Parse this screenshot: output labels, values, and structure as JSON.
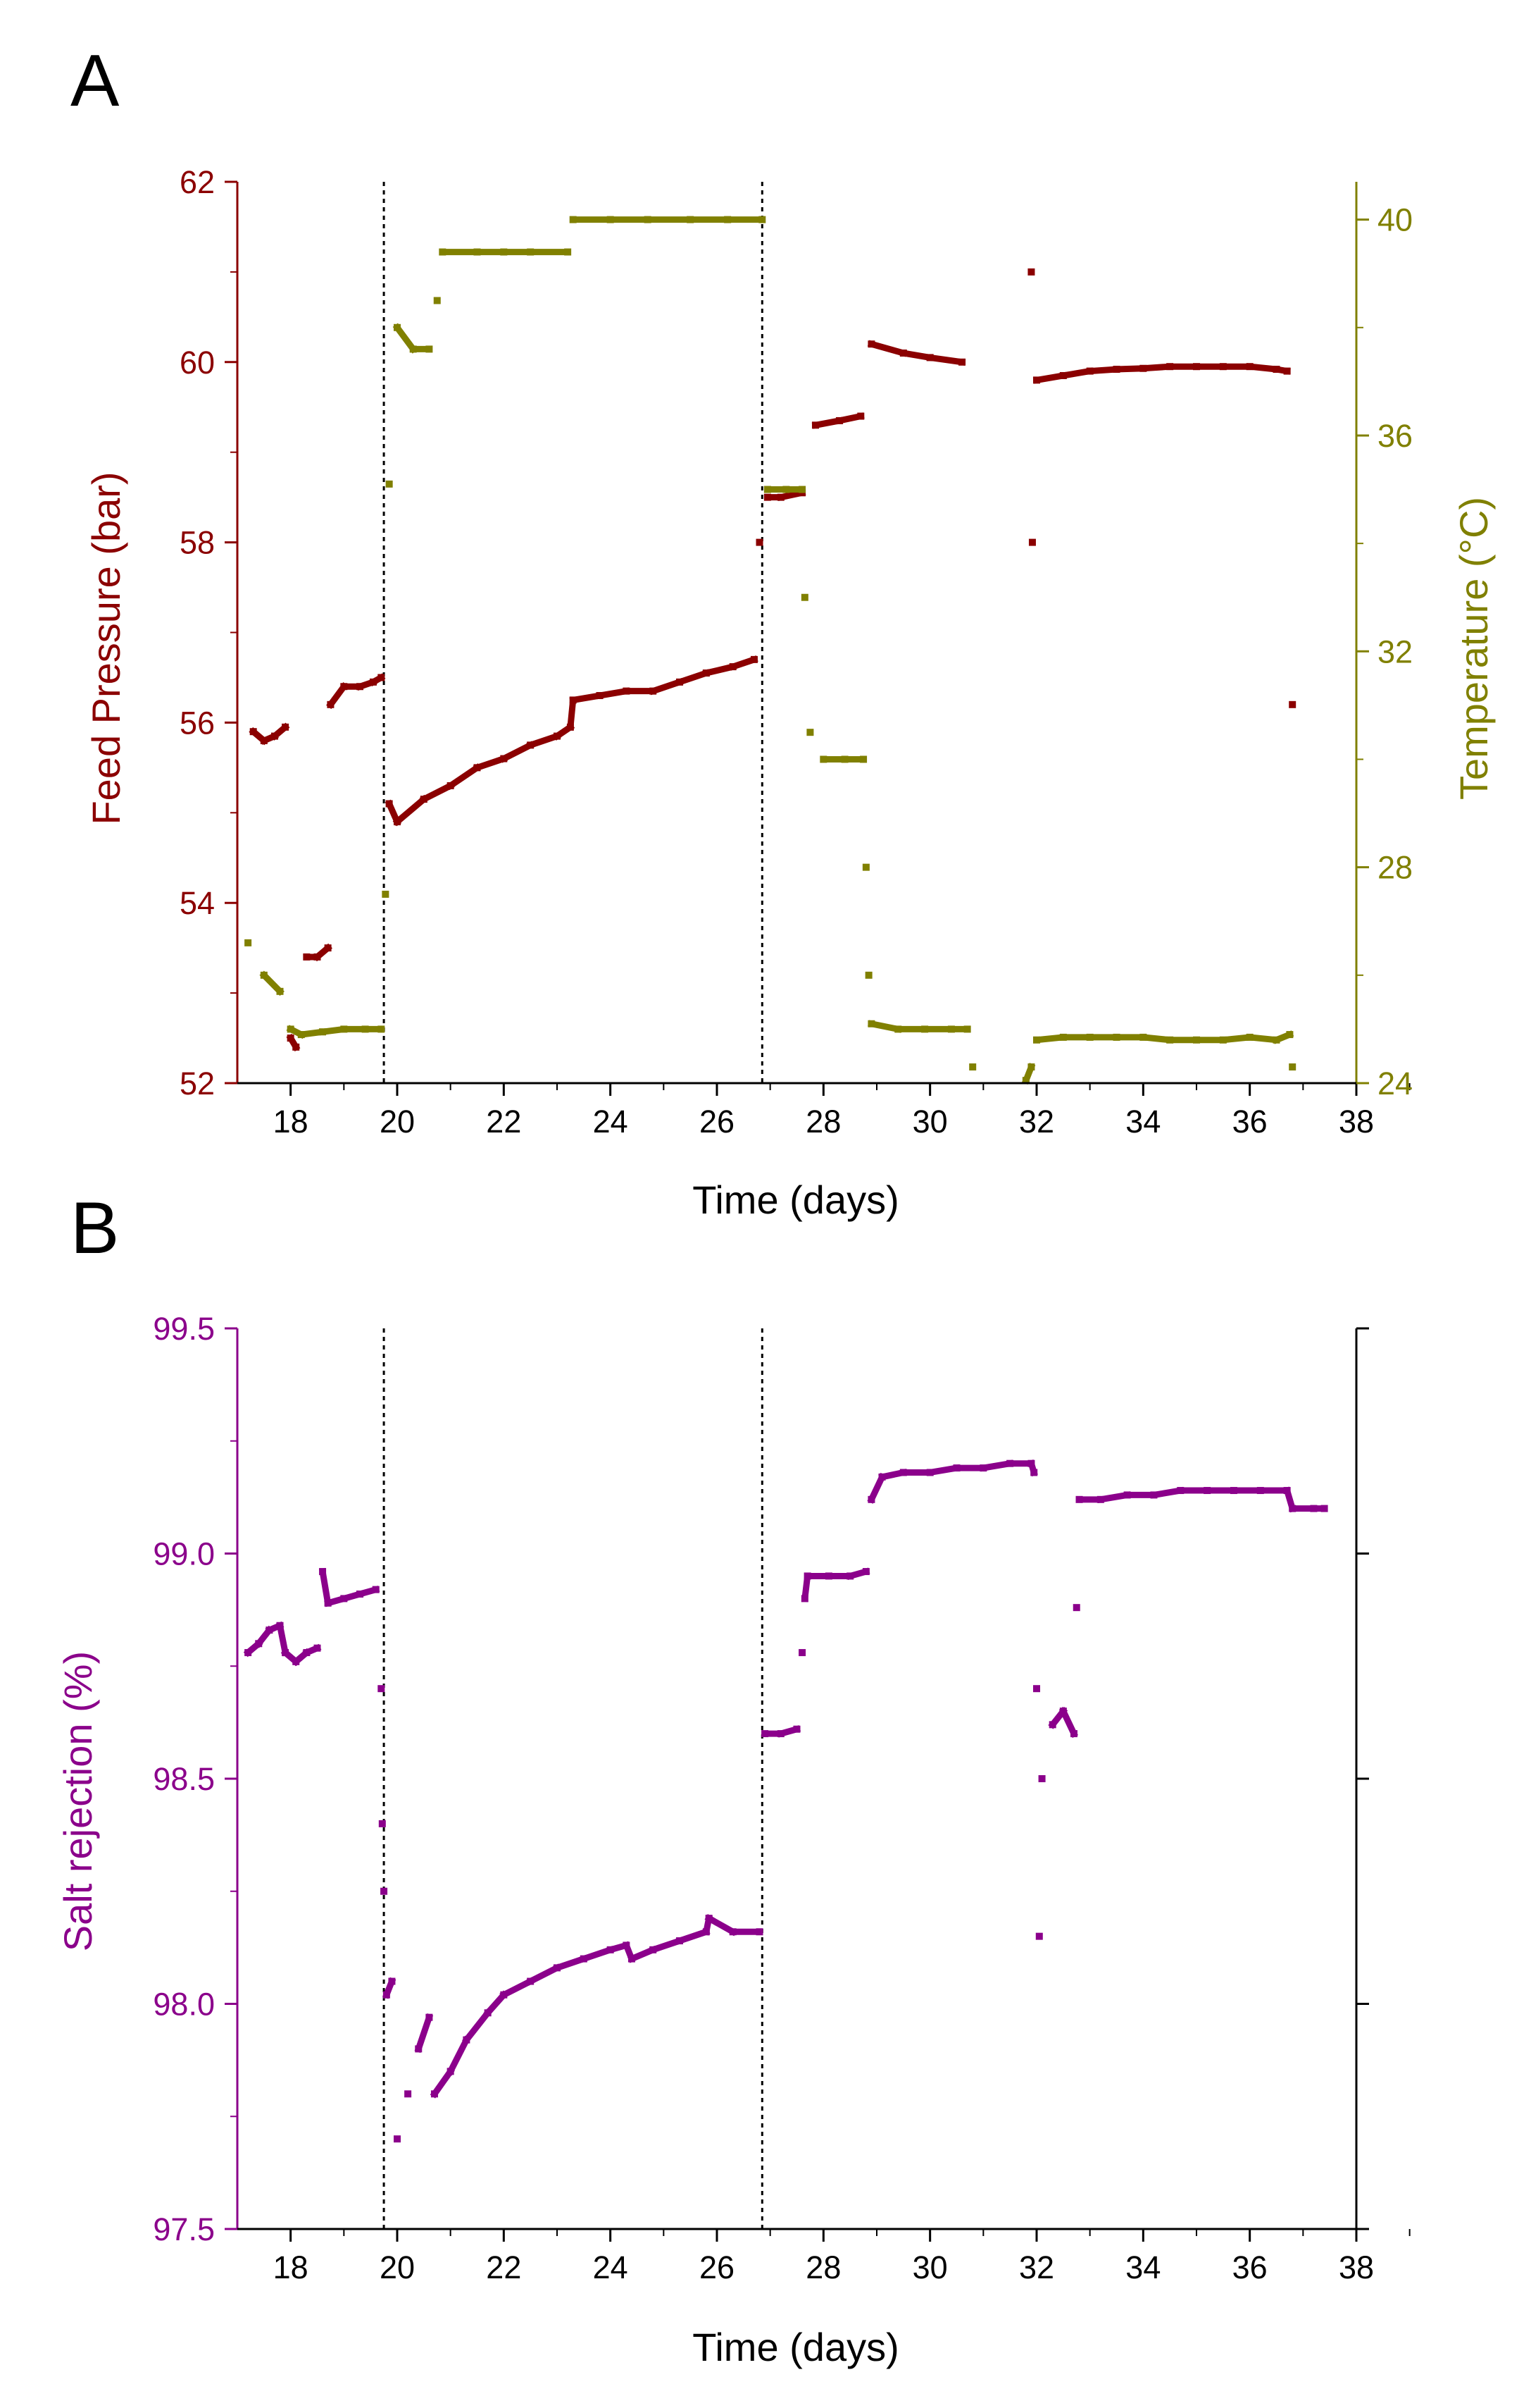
{
  "colors": {
    "pressure": "#8b0000",
    "temperature": "#808000",
    "rejection": "#8b008b",
    "axis": "#000000",
    "marker_line": "#000000"
  },
  "chart_data": [
    {
      "panel_label": "A",
      "type": "scatter",
      "xlabel": "Time (days)",
      "ylabel": "Feed Pressure (bar)",
      "y2label": "Temperature (°C)",
      "xlim": [
        17,
        38
      ],
      "ylim": [
        52,
        62
      ],
      "y2lim": [
        24,
        40.7
      ],
      "xticks": [
        18,
        20,
        22,
        24,
        26,
        28,
        30,
        32,
        34,
        36,
        38
      ],
      "yticks": [
        52,
        54,
        56,
        58,
        60,
        62
      ],
      "y2ticks": [
        24,
        28,
        32,
        36,
        40
      ],
      "vlines": [
        19.75,
        26.85
      ],
      "series": [
        {
          "axis": "left",
          "color": "#8b0000",
          "points": [
            [
              17.3,
              55.9
            ],
            [
              17.5,
              55.8
            ],
            [
              17.7,
              55.85
            ],
            [
              17.9,
              55.95
            ],
            [
              18.0,
              52.5
            ],
            [
              18.1,
              52.4
            ],
            [
              18.3,
              53.4
            ],
            [
              18.5,
              53.4
            ],
            [
              18.7,
              53.5
            ],
            [
              18.75,
              56.2
            ],
            [
              19.0,
              56.4
            ],
            [
              19.3,
              56.4
            ],
            [
              19.55,
              56.45
            ],
            [
              19.7,
              56.5
            ],
            [
              19.85,
              55.1
            ],
            [
              20.0,
              54.9
            ],
            [
              20.5,
              55.15
            ],
            [
              21.0,
              55.3
            ],
            [
              21.5,
              55.5
            ],
            [
              22.0,
              55.6
            ],
            [
              22.5,
              55.75
            ],
            [
              23.0,
              55.85
            ],
            [
              23.25,
              55.95
            ],
            [
              23.3,
              56.25
            ],
            [
              23.8,
              56.3
            ],
            [
              24.3,
              56.35
            ],
            [
              24.8,
              56.35
            ],
            [
              25.3,
              56.45
            ],
            [
              25.8,
              56.55
            ],
            [
              26.3,
              56.62
            ],
            [
              26.7,
              56.7
            ],
            [
              26.8,
              58.0
            ],
            [
              26.95,
              58.5
            ],
            [
              27.2,
              58.5
            ],
            [
              27.6,
              58.55
            ],
            [
              27.85,
              59.3
            ],
            [
              28.3,
              59.35
            ],
            [
              28.7,
              59.4
            ],
            [
              28.9,
              60.2
            ],
            [
              29.5,
              60.1
            ],
            [
              30.0,
              60.05
            ],
            [
              30.6,
              60.0
            ],
            [
              31.9,
              61.0
            ],
            [
              31.92,
              58.0
            ],
            [
              32.0,
              59.8
            ],
            [
              32.5,
              59.85
            ],
            [
              33.0,
              59.9
            ],
            [
              33.5,
              59.92
            ],
            [
              34.0,
              59.93
            ],
            [
              34.5,
              59.95
            ],
            [
              35.0,
              59.95
            ],
            [
              35.5,
              59.95
            ],
            [
              36.0,
              59.95
            ],
            [
              36.5,
              59.92
            ],
            [
              36.7,
              59.9
            ],
            [
              36.8,
              56.2
            ]
          ]
        },
        {
          "axis": "right",
          "color": "#808000",
          "points": [
            [
              17.2,
              26.6
            ],
            [
              17.5,
              26.0
            ],
            [
              17.8,
              25.7
            ],
            [
              18.0,
              25.0
            ],
            [
              18.2,
              24.9
            ],
            [
              18.6,
              24.95
            ],
            [
              19.0,
              25.0
            ],
            [
              19.4,
              25.0
            ],
            [
              19.7,
              25.0
            ],
            [
              19.78,
              27.5
            ],
            [
              19.85,
              35.1
            ],
            [
              20.0,
              38.0
            ],
            [
              20.3,
              37.6
            ],
            [
              20.6,
              37.6
            ],
            [
              20.75,
              38.5
            ],
            [
              20.85,
              39.4
            ],
            [
              21.5,
              39.4
            ],
            [
              22.0,
              39.4
            ],
            [
              22.5,
              39.4
            ],
            [
              23.2,
              39.4
            ],
            [
              23.3,
              40.0
            ],
            [
              24.0,
              40.0
            ],
            [
              24.7,
              40.0
            ],
            [
              25.5,
              40.0
            ],
            [
              26.2,
              40.0
            ],
            [
              26.85,
              40.0
            ],
            [
              26.95,
              35.0
            ],
            [
              27.3,
              35.0
            ],
            [
              27.6,
              35.0
            ],
            [
              27.65,
              33.0
            ],
            [
              27.75,
              30.5
            ],
            [
              28.0,
              30.0
            ],
            [
              28.4,
              30.0
            ],
            [
              28.75,
              30.0
            ],
            [
              28.8,
              28.0
            ],
            [
              28.85,
              26.0
            ],
            [
              28.9,
              25.1
            ],
            [
              29.4,
              25.0
            ],
            [
              29.9,
              25.0
            ],
            [
              30.4,
              25.0
            ],
            [
              30.7,
              25.0
            ],
            [
              30.8,
              24.3
            ],
            [
              31.8,
              24.05
            ],
            [
              31.9,
              24.3
            ],
            [
              32.0,
              24.8
            ],
            [
              32.5,
              24.85
            ],
            [
              33.0,
              24.85
            ],
            [
              33.5,
              24.85
            ],
            [
              34.0,
              24.85
            ],
            [
              34.5,
              24.8
            ],
            [
              35.0,
              24.8
            ],
            [
              35.5,
              24.8
            ],
            [
              36.0,
              24.85
            ],
            [
              36.5,
              24.8
            ],
            [
              36.75,
              24.9
            ],
            [
              36.8,
              24.3
            ]
          ]
        }
      ]
    },
    {
      "panel_label": "B",
      "type": "scatter",
      "xlabel": "Time (days)",
      "ylabel": "Salt rejection (%)",
      "xlim": [
        17,
        38
      ],
      "ylim": [
        97.5,
        99.5
      ],
      "xticks": [
        18,
        20,
        22,
        24,
        26,
        28,
        30,
        32,
        34,
        36,
        38
      ],
      "yticks": [
        97.5,
        98.0,
        98.5,
        99.0,
        99.5
      ],
      "vlines": [
        19.75,
        26.85
      ],
      "series": [
        {
          "axis": "left",
          "color": "#8b008b",
          "points": [
            [
              17.2,
              98.78
            ],
            [
              17.4,
              98.8
            ],
            [
              17.6,
              98.83
            ],
            [
              17.8,
              98.84
            ],
            [
              17.9,
              98.78
            ],
            [
              18.1,
              98.76
            ],
            [
              18.3,
              98.78
            ],
            [
              18.5,
              98.79
            ],
            [
              18.6,
              98.96
            ],
            [
              18.7,
              98.89
            ],
            [
              19.0,
              98.9
            ],
            [
              19.3,
              98.91
            ],
            [
              19.6,
              98.92
            ],
            [
              19.7,
              98.7
            ],
            [
              19.72,
              98.4
            ],
            [
              19.75,
              98.25
            ],
            [
              19.8,
              98.02
            ],
            [
              19.9,
              98.05
            ],
            [
              20.0,
              97.7
            ],
            [
              20.2,
              97.8
            ],
            [
              20.4,
              97.9
            ],
            [
              20.6,
              97.97
            ],
            [
              20.7,
              97.8
            ],
            [
              21.0,
              97.85
            ],
            [
              21.3,
              97.92
            ],
            [
              21.7,
              97.98
            ],
            [
              22.0,
              98.02
            ],
            [
              22.5,
              98.05
            ],
            [
              23.0,
              98.08
            ],
            [
              23.5,
              98.1
            ],
            [
              24.0,
              98.12
            ],
            [
              24.3,
              98.13
            ],
            [
              24.4,
              98.1
            ],
            [
              24.8,
              98.12
            ],
            [
              25.3,
              98.14
            ],
            [
              25.8,
              98.16
            ],
            [
              25.85,
              98.19
            ],
            [
              26.3,
              98.16
            ],
            [
              26.8,
              98.16
            ],
            [
              26.9,
              98.6
            ],
            [
              27.2,
              98.6
            ],
            [
              27.5,
              98.61
            ],
            [
              27.6,
              98.78
            ],
            [
              27.65,
              98.9
            ],
            [
              27.7,
              98.95
            ],
            [
              28.1,
              98.95
            ],
            [
              28.5,
              98.95
            ],
            [
              28.8,
              98.96
            ],
            [
              28.9,
              99.12
            ],
            [
              29.1,
              99.17
            ],
            [
              29.5,
              99.18
            ],
            [
              30.0,
              99.18
            ],
            [
              30.5,
              99.19
            ],
            [
              31.0,
              99.19
            ],
            [
              31.5,
              99.2
            ],
            [
              31.9,
              99.2
            ],
            [
              31.95,
              99.18
            ],
            [
              32.0,
              98.7
            ],
            [
              32.05,
              98.15
            ],
            [
              32.1,
              98.5
            ],
            [
              32.3,
              98.62
            ],
            [
              32.5,
              98.65
            ],
            [
              32.7,
              98.6
            ],
            [
              32.75,
              98.88
            ],
            [
              32.8,
              99.12
            ],
            [
              33.2,
              99.12
            ],
            [
              33.7,
              99.13
            ],
            [
              34.2,
              99.13
            ],
            [
              34.7,
              99.14
            ],
            [
              35.2,
              99.14
            ],
            [
              35.7,
              99.14
            ],
            [
              36.2,
              99.14
            ],
            [
              36.7,
              99.14
            ],
            [
              36.8,
              99.1
            ],
            [
              37.2,
              99.1
            ],
            [
              37.4,
              99.1
            ]
          ]
        }
      ]
    }
  ]
}
